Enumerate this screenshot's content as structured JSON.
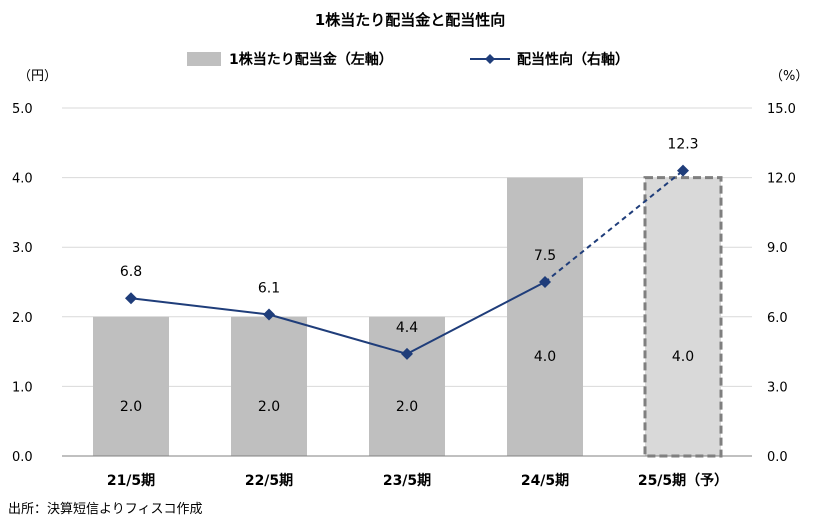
{
  "chart_data": {
    "type": "bar",
    "title": "1株当たり配当金と配当性向",
    "categories": [
      "21/5期",
      "22/5期",
      "23/5期",
      "24/5期",
      "25/5期（予）"
    ],
    "series": [
      {
        "name": "1株当たり配当金（左軸）",
        "type": "bar",
        "axis": "left",
        "values": [
          2.0,
          2.0,
          2.0,
          4.0,
          4.0
        ],
        "labels": [
          "2.0",
          "2.0",
          "2.0",
          "4.0",
          "4.0"
        ],
        "forecast": [
          false,
          false,
          false,
          false,
          true
        ],
        "color": "#bfbfbf",
        "forecast_color": "#d9d9d9",
        "forecast_border_color": "#7f7f7f"
      },
      {
        "name": "配当性向（右軸）",
        "type": "line",
        "axis": "right",
        "values": [
          6.8,
          6.1,
          4.4,
          7.5,
          12.3
        ],
        "labels": [
          "6.8",
          "6.1",
          "4.4",
          "7.5",
          "12.3"
        ],
        "forecast": [
          false,
          false,
          false,
          false,
          true
        ],
        "color": "#1f3d7a"
      }
    ],
    "y_left": {
      "unit": "（円）",
      "range": [
        0,
        5
      ],
      "ticks": [
        "0.0",
        "1.0",
        "2.0",
        "3.0",
        "4.0",
        "5.0"
      ]
    },
    "y_right": {
      "unit": "（%）",
      "range": [
        0,
        15
      ],
      "ticks": [
        "0.0",
        "3.0",
        "6.0",
        "9.0",
        "12.0",
        "15.0"
      ]
    },
    "grid": true,
    "legend_position": "top-center",
    "source": "出所：決算短信よりフィスコ作成"
  }
}
